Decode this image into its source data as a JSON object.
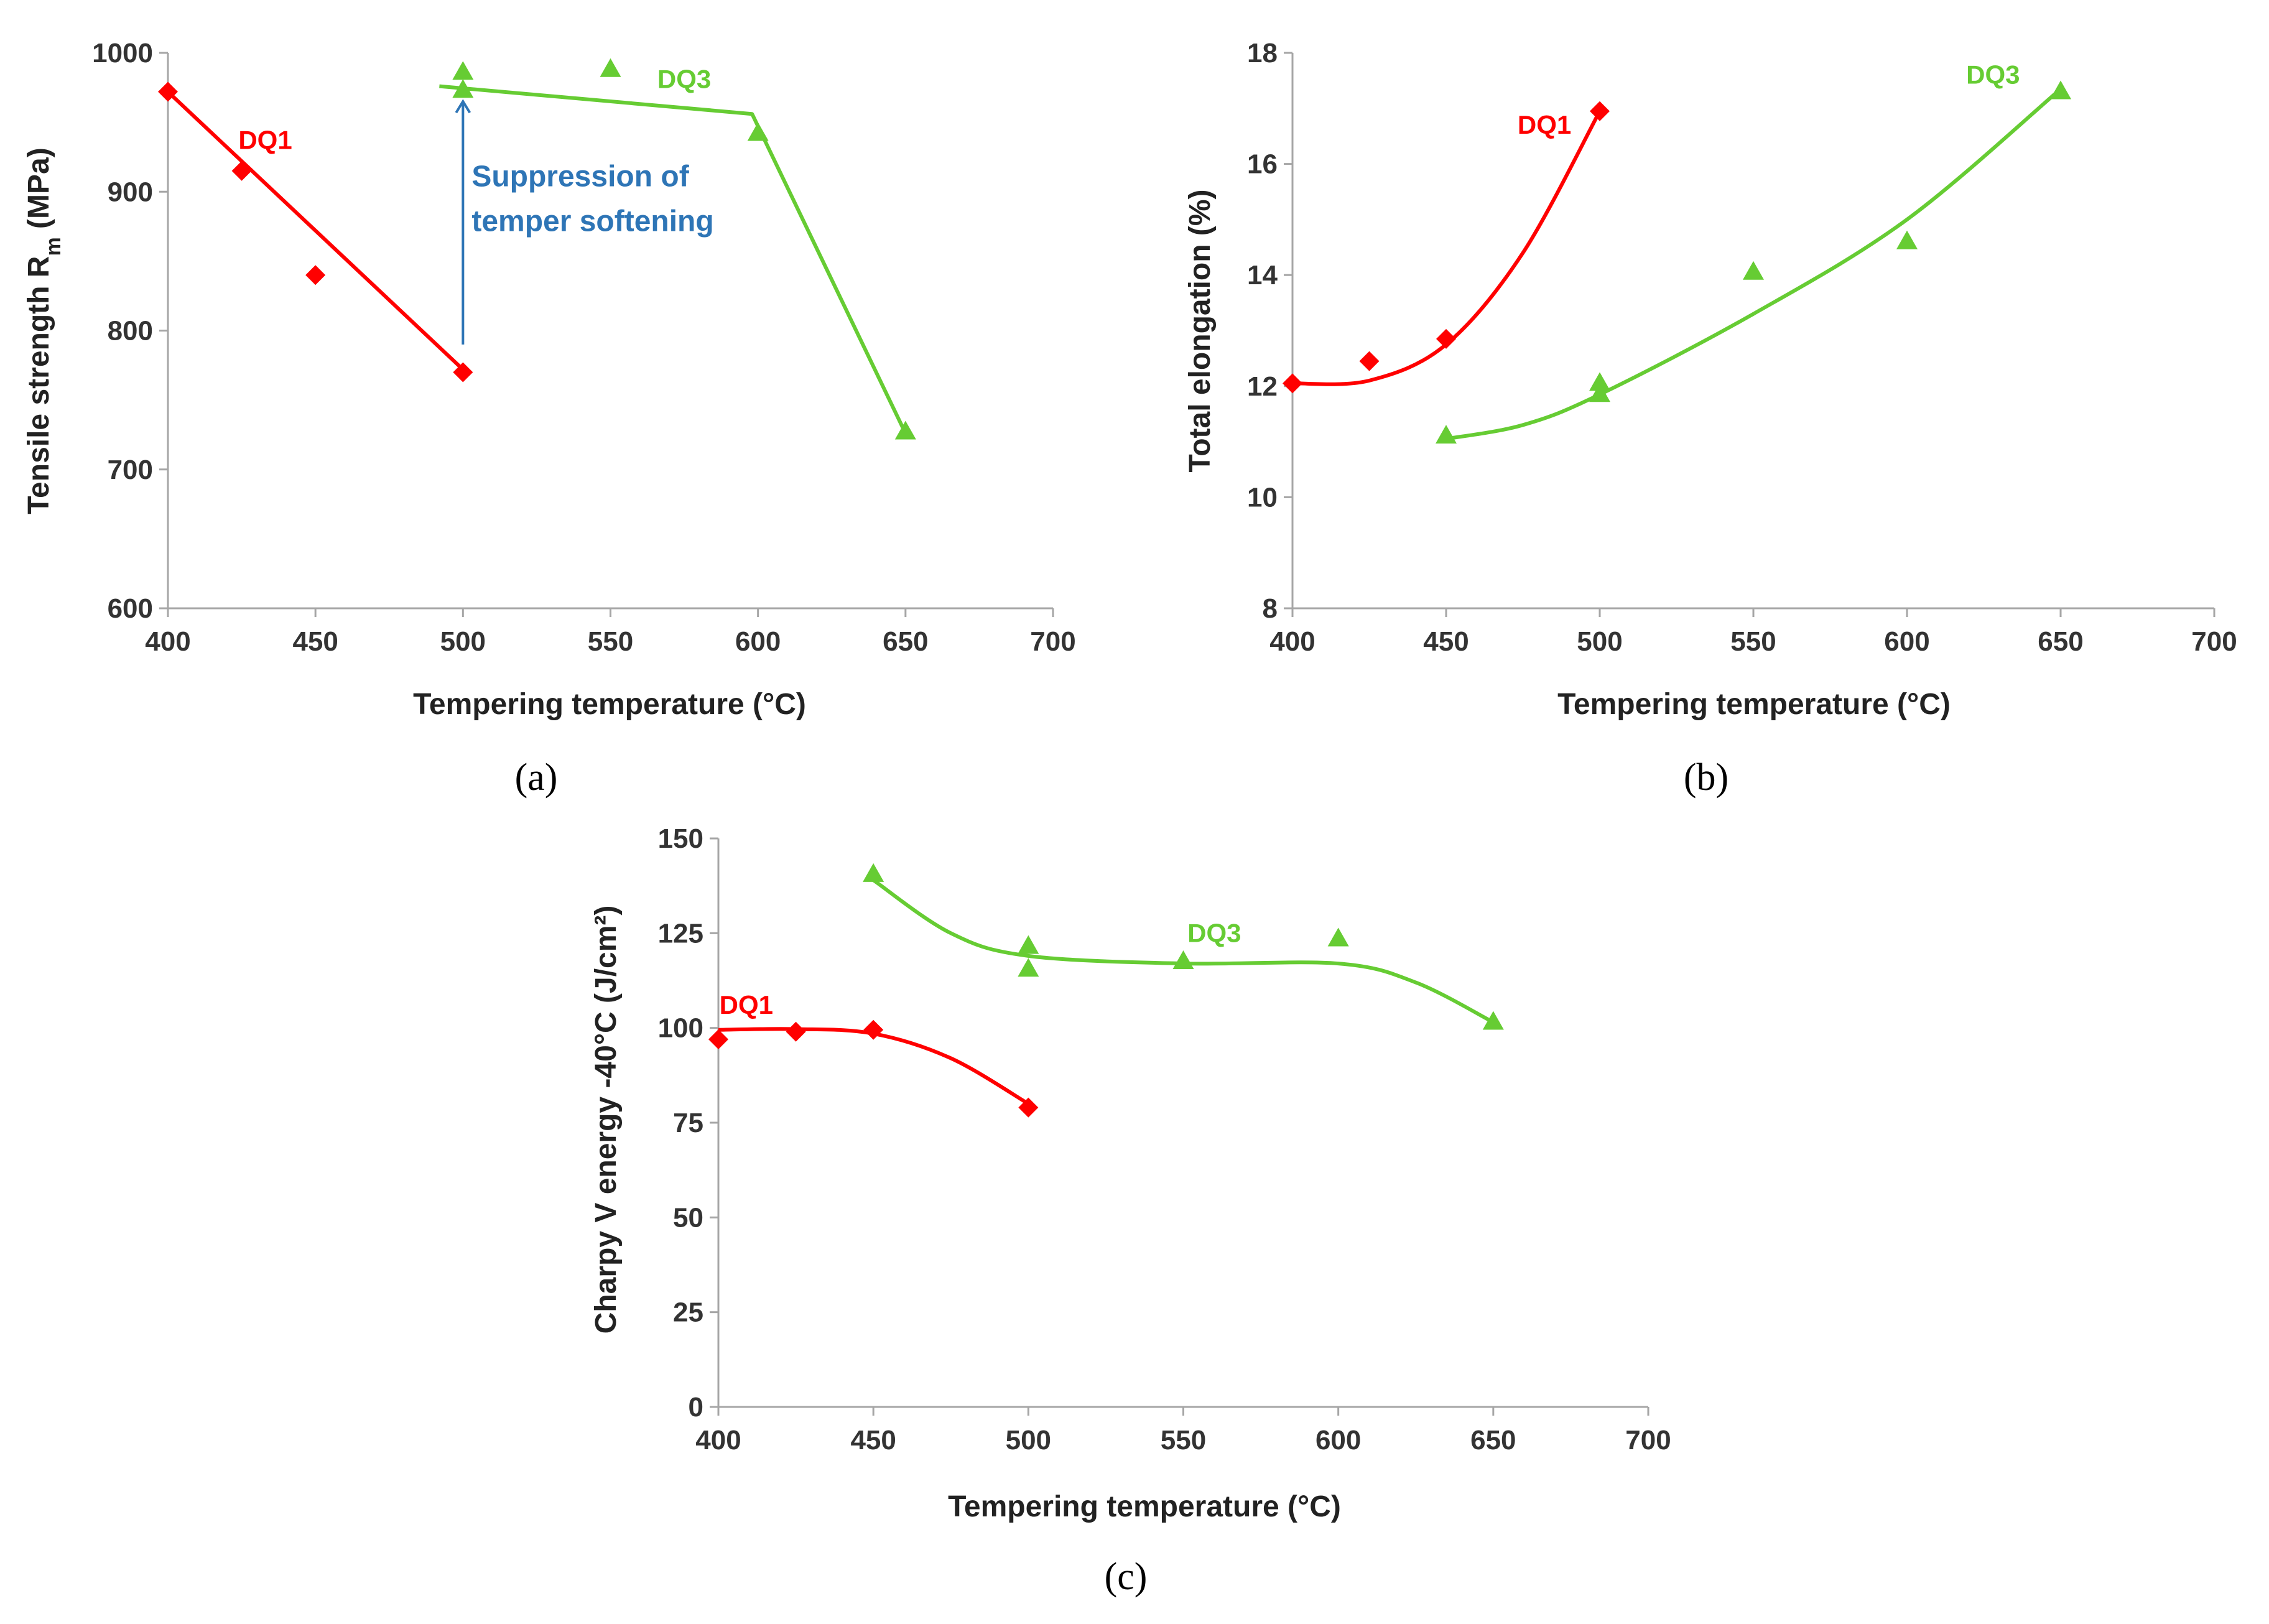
{
  "colors": {
    "dq1": "#ff0000",
    "dq3": "#66cc33",
    "annotation": "#2e75b6"
  },
  "chart_data": [
    {
      "panel": "(a)",
      "type": "scatter",
      "xlabel": "Tempering temperature (°C)",
      "ylabel": "Tensile strength R",
      "ylabel_sub": "m",
      "ylabel_suffix": " (MPa)",
      "xlim": [
        400,
        700
      ],
      "ylim": [
        600,
        1000
      ],
      "xticks": [
        400,
        450,
        500,
        550,
        600,
        650,
        700
      ],
      "yticks": [
        600,
        700,
        800,
        900,
        1000
      ],
      "grid": false,
      "annotation": {
        "lines": [
          "Suppression of",
          "temper softening"
        ],
        "arrow_x": 500,
        "arrow_from_y": 790,
        "arrow_to_y": 965
      },
      "series": [
        {
          "name": "DQ1",
          "marker": "diamond",
          "x": [
            400,
            425,
            450,
            500
          ],
          "y": [
            972,
            915,
            840,
            770
          ],
          "fit": [
            [
              400,
              972
            ],
            [
              500,
              772
            ]
          ],
          "fit_type": "linear",
          "label_at": [
            433,
            937
          ]
        },
        {
          "name": "DQ3",
          "marker": "triangle",
          "x": [
            500,
            500,
            550,
            600,
            650
          ],
          "y": [
            986,
            973,
            988,
            942,
            727
          ],
          "fit": [
            [
              492,
              976
            ],
            [
              598,
              956
            ],
            [
              650,
              726
            ]
          ],
          "fit_type": "polyline",
          "label_at": [
            575,
            981
          ]
        }
      ]
    },
    {
      "panel": "(b)",
      "type": "scatter",
      "xlabel": "Tempering temperature (°C)",
      "ylabel": "Total elongation (%)",
      "xlim": [
        400,
        700
      ],
      "ylim": [
        8,
        18
      ],
      "xticks": [
        400,
        450,
        500,
        550,
        600,
        650,
        700
      ],
      "yticks": [
        8,
        10,
        12,
        14,
        16,
        18
      ],
      "grid": false,
      "series": [
        {
          "name": "DQ1",
          "marker": "diamond",
          "x": [
            400,
            425,
            450,
            500
          ],
          "y": [
            12.05,
            12.45,
            12.85,
            16.95
          ],
          "fit": [
            [
              400,
              12.05
            ],
            [
              425,
              12.1
            ],
            [
              450,
              12.75
            ],
            [
              475,
              14.4
            ],
            [
              500,
              16.95
            ]
          ],
          "fit_type": "smooth",
          "label_at": [
            482,
            16.7
          ]
        },
        {
          "name": "DQ3",
          "marker": "triangle",
          "x": [
            450,
            500,
            500,
            550,
            600,
            650
          ],
          "y": [
            11.1,
            12.05,
            11.85,
            14.05,
            14.6,
            17.3
          ],
          "fit": [
            [
              450,
              11.05
            ],
            [
              475,
              11.3
            ],
            [
              500,
              11.85
            ],
            [
              550,
              13.3
            ],
            [
              600,
              15.0
            ],
            [
              650,
              17.35
            ]
          ],
          "fit_type": "smooth",
          "label_at": [
            628,
            17.6
          ]
        }
      ]
    },
    {
      "panel": "(c)",
      "type": "scatter",
      "xlabel": "Tempering temperature (°C)",
      "ylabel": "Charpy V energy  -40°C (J/cm²)",
      "xlim": [
        400,
        700
      ],
      "ylim": [
        0,
        150
      ],
      "xticks": [
        400,
        450,
        500,
        550,
        600,
        650,
        700
      ],
      "yticks": [
        0,
        25,
        50,
        75,
        100,
        125,
        150
      ],
      "grid": false,
      "series": [
        {
          "name": "DQ1",
          "marker": "diamond",
          "x": [
            400,
            425,
            450,
            500
          ],
          "y": [
            97,
            99,
            99.5,
            79
          ],
          "fit": [
            [
              400,
              99.5
            ],
            [
              425,
              99.7
            ],
            [
              450,
              98.5
            ],
            [
              475,
              92
            ],
            [
              500,
              80
            ]
          ],
          "fit_type": "smooth",
          "label_at": [
            409,
            106
          ]
        },
        {
          "name": "DQ3",
          "marker": "triangle",
          "x": [
            450,
            500,
            500,
            550,
            600,
            650
          ],
          "y": [
            140.5,
            121.5,
            115.5,
            117.5,
            123.5,
            101.5
          ],
          "fit": [
            [
              450,
              139
            ],
            [
              475,
              125
            ],
            [
              500,
              119
            ],
            [
              550,
              117
            ],
            [
              600,
              117
            ],
            [
              625,
              112
            ],
            [
              650,
              101.5
            ]
          ],
          "fit_type": "smooth",
          "label_at": [
            560,
            125
          ]
        }
      ]
    }
  ]
}
